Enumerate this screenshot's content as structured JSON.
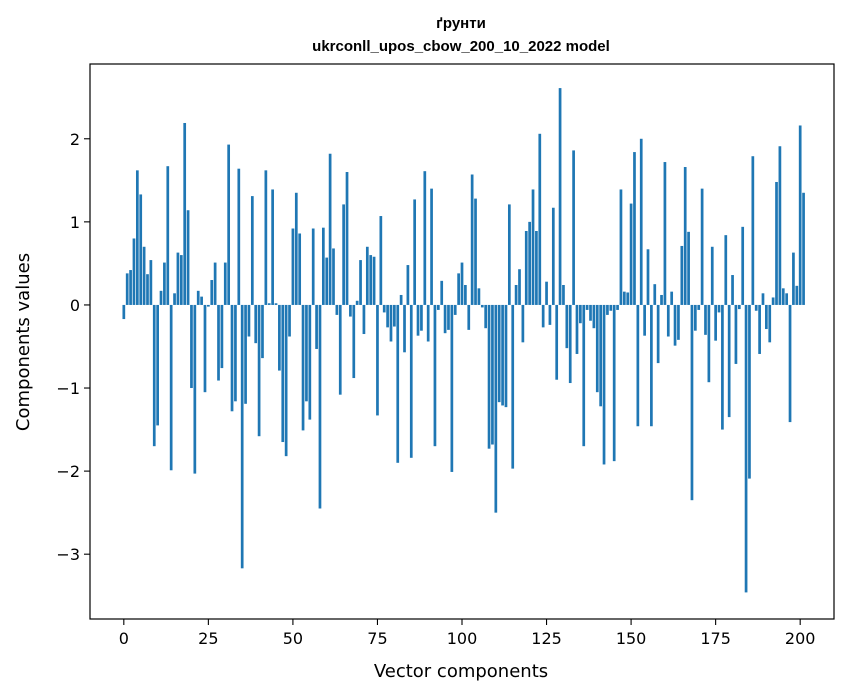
{
  "chart_data": {
    "type": "bar",
    "title": "ґрунти",
    "subtitle": "ukrconll_upos_cbow_200_10_2022 model",
    "xlabel": "Vector components",
    "ylabel": "Components values",
    "xlim": [
      -10,
      210
    ],
    "ylim": [
      -3.78,
      2.9
    ],
    "xticks": [
      0,
      25,
      50,
      75,
      100,
      125,
      150,
      175,
      200
    ],
    "yticks": [
      -3,
      -2,
      -1,
      0,
      1,
      2
    ],
    "bar_color": "#1f77b4",
    "grid": false,
    "values": [
      -0.17,
      0.38,
      0.42,
      0.8,
      1.62,
      1.33,
      0.7,
      0.37,
      0.54,
      -1.7,
      -1.45,
      0.17,
      0.51,
      1.67,
      -1.99,
      0.14,
      0.63,
      0.6,
      2.19,
      1.14,
      -1.0,
      -2.03,
      0.17,
      0.1,
      -1.05,
      -0.02,
      0.3,
      0.51,
      -0.91,
      -0.76,
      0.51,
      1.93,
      -1.28,
      -1.16,
      1.64,
      -3.17,
      -1.19,
      -0.38,
      1.31,
      -0.46,
      -1.58,
      -0.64,
      1.62,
      0.02,
      1.39,
      0.02,
      -0.79,
      -1.65,
      -1.82,
      -0.38,
      0.92,
      1.35,
      0.86,
      -1.51,
      -1.16,
      -1.38,
      0.92,
      -0.53,
      -2.45,
      0.93,
      0.57,
      1.82,
      0.68,
      -0.12,
      -1.08,
      1.21,
      1.6,
      -0.14,
      -0.88,
      0.05,
      0.54,
      -0.35,
      0.7,
      0.6,
      0.58,
      -1.33,
      1.07,
      -0.09,
      -0.27,
      -0.44,
      -0.26,
      -1.9,
      0.12,
      -0.57,
      0.48,
      -1.84,
      1.27,
      -0.37,
      -0.31,
      1.61,
      -0.44,
      1.4,
      -1.7,
      -0.06,
      0.29,
      -0.34,
      -0.3,
      -2.01,
      -0.12,
      0.38,
      0.51,
      0.24,
      -0.3,
      1.57,
      1.28,
      0.2,
      -0.03,
      -0.28,
      -1.73,
      -1.68,
      -2.5,
      -1.17,
      -1.21,
      -1.23,
      1.21,
      -1.97,
      0.24,
      0.43,
      -0.45,
      0.89,
      1.0,
      1.39,
      0.89,
      2.06,
      -0.27,
      0.28,
      -0.24,
      1.17,
      -0.9,
      2.61,
      0.24,
      -0.52,
      -0.94,
      1.86,
      -0.59,
      -0.22,
      -1.7,
      -0.06,
      -0.19,
      -0.28,
      -1.05,
      -1.22,
      -1.92,
      -0.12,
      -0.07,
      -1.88,
      -0.06,
      1.39,
      0.16,
      0.15,
      1.22,
      1.84,
      -1.46,
      2.0,
      -0.37,
      0.67,
      -1.46,
      0.25,
      -0.7,
      0.12,
      1.72,
      -0.38,
      0.16,
      -0.49,
      -0.42,
      0.71,
      1.66,
      0.88,
      -2.35,
      -0.31,
      -0.06,
      1.4,
      -0.36,
      -0.93,
      0.7,
      -0.43,
      -0.09,
      -1.5,
      0.84,
      -1.35,
      0.36,
      -0.71,
      -0.05,
      0.94,
      -3.46,
      -2.09,
      1.79,
      -0.07,
      -0.59,
      0.14,
      -0.29,
      -0.45,
      0.09,
      1.48,
      1.91,
      0.2,
      0.14,
      -1.41,
      0.63,
      0.23,
      2.16,
      1.35
    ]
  }
}
